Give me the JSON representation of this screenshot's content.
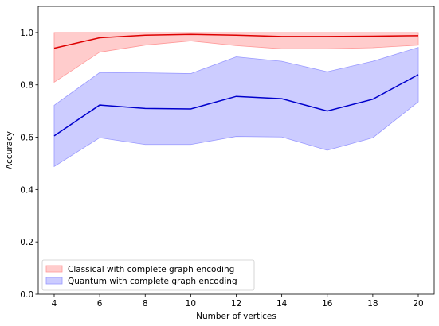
{
  "chart_data": {
    "type": "line",
    "title": "",
    "xlabel": "Number of vertices",
    "ylabel": "Accuracy",
    "x": [
      4,
      6,
      8,
      10,
      12,
      14,
      16,
      18,
      20
    ],
    "xlim": [
      3.3,
      20.7
    ],
    "ylim": [
      0.0,
      1.1
    ],
    "xticks": [
      4,
      6,
      8,
      10,
      12,
      14,
      16,
      18,
      20
    ],
    "yticks": [
      "0.0",
      "0.2",
      "0.4",
      "0.6",
      "0.8",
      "1.0"
    ],
    "grid": false,
    "legend_position": "lower-left",
    "series": [
      {
        "name": "Classical with complete graph encoding",
        "color": "#dd0000",
        "fill_color": "#ff9999",
        "values": [
          0.94,
          0.98,
          0.99,
          0.993,
          0.99,
          0.985,
          0.985,
          0.986,
          0.988
        ],
        "lower": [
          0.81,
          0.925,
          0.952,
          0.968,
          0.95,
          0.938,
          0.938,
          0.942,
          0.952
        ],
        "upper": [
          1.0,
          1.0,
          1.0,
          1.0,
          1.0,
          1.0,
          1.0,
          1.0,
          1.0
        ]
      },
      {
        "name": "Quantum with complete graph encoding",
        "color": "#0000cc",
        "fill_color": "#9999ff",
        "values": [
          0.605,
          0.723,
          0.71,
          0.708,
          0.756,
          0.747,
          0.7,
          0.745,
          0.839
        ],
        "lower": [
          0.488,
          0.598,
          0.572,
          0.572,
          0.603,
          0.601,
          0.55,
          0.598,
          0.735
        ],
        "upper": [
          0.722,
          0.847,
          0.846,
          0.843,
          0.907,
          0.89,
          0.85,
          0.89,
          0.943
        ]
      }
    ]
  }
}
